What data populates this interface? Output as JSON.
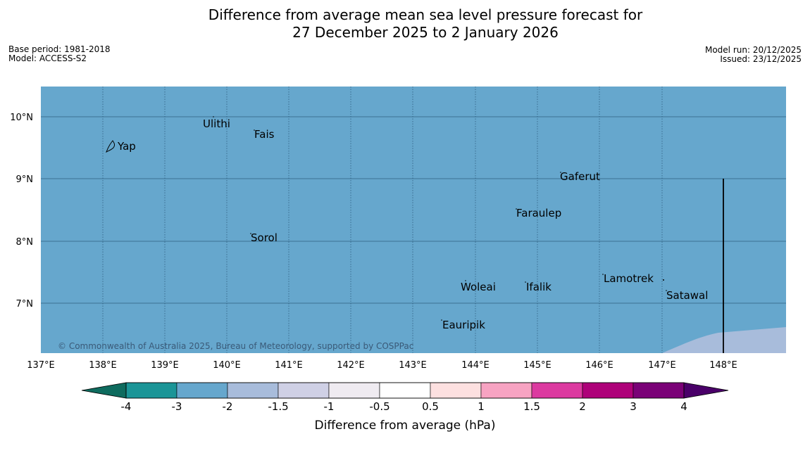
{
  "title": {
    "line1": "Difference from average mean sea level pressure forecast for",
    "line2": "27 December 2025 to 2 January 2026"
  },
  "info_left": {
    "base_period": "Base period: 1981-2018",
    "model": "Model: ACCESS-S2"
  },
  "info_right": {
    "model_run": "Model run: 20/12/2025",
    "issued": "Issued: 23/12/2025"
  },
  "map": {
    "colors": {
      "ocean": "#66a7cd",
      "lighter_band": "#a8bcdb",
      "gridline": "#2f5f80",
      "marker": "#000000"
    },
    "lat_labels": [
      "10°N",
      "9°N",
      "8°N",
      "7°N"
    ],
    "lon_labels": [
      "137°E",
      "138°E",
      "139°E",
      "140°E",
      "141°E",
      "142°E",
      "143°E",
      "144°E",
      "145°E",
      "146°E",
      "147°E",
      "148°E"
    ],
    "places": {
      "yap": "Yap",
      "ulithi": "Ulithi",
      "fais": "Fais",
      "gaferut": "Gaferut",
      "faraulep": "Faraulep",
      "sorol": "Sorol",
      "lamotrek": "Lamotrek",
      "woleai": "Woleai",
      "ifalik": "Ifalik",
      "satawal": "Satawal",
      "eauripik": "Eauripik"
    },
    "copyright": "© Commonwealth of Australia 2025, Bureau of Meteorology, supported by COSPPac"
  },
  "colorbar": {
    "label": "Difference from average (hPa)",
    "ticks": [
      "-4",
      "-3",
      "-2",
      "-1.5",
      "-1",
      "-0.5",
      "0.5",
      "1",
      "1.5",
      "2",
      "3",
      "4"
    ],
    "colors": [
      "#1b9597",
      "#66a7cd",
      "#a8bcdb",
      "#cfd0e5",
      "#efebf1",
      "#ffffff",
      "#fde0e0",
      "#f7a3c2",
      "#dc3aa0",
      "#ae0179",
      "#7a0177"
    ],
    "low_extend_color": "#0e6b5e",
    "high_extend_color": "#4a0069"
  }
}
